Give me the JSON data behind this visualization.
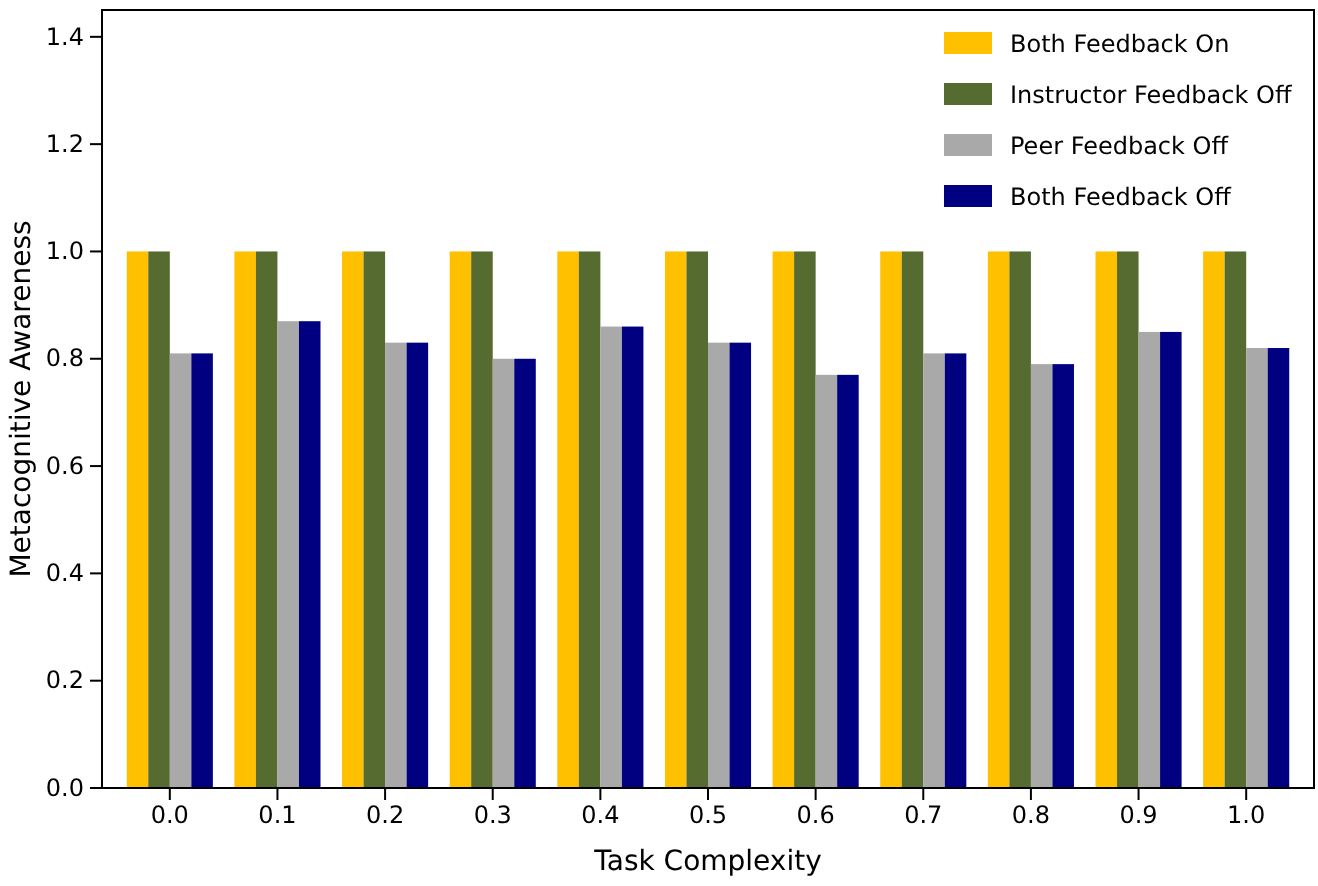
{
  "chart_data": {
    "type": "bar",
    "xlabel": "Task Complexity",
    "ylabel": "Metacognitive Awareness",
    "categories": [
      "0.0",
      "0.1",
      "0.2",
      "0.3",
      "0.4",
      "0.5",
      "0.6",
      "0.7",
      "0.8",
      "0.9",
      "1.0"
    ],
    "series": [
      {
        "name": "Both Feedback On",
        "color": "#ffc000",
        "values": [
          1,
          1,
          1,
          1,
          1,
          1,
          1,
          1,
          1,
          1,
          1
        ]
      },
      {
        "name": "Instructor Feedback Off",
        "color": "#556b2f",
        "values": [
          1,
          1,
          1,
          1,
          1,
          1,
          1,
          1,
          1,
          1,
          1
        ]
      },
      {
        "name": "Peer Feedback Off",
        "color": "#a9a9a9",
        "values": [
          0.81,
          0.87,
          0.83,
          0.8,
          0.86,
          0.83,
          0.77,
          0.81,
          0.79,
          0.85,
          0.82
        ]
      },
      {
        "name": "Both Feedback Off",
        "color": "#000080",
        "values": [
          0.81,
          0.87,
          0.83,
          0.8,
          0.86,
          0.83,
          0.77,
          0.81,
          0.79,
          0.85,
          0.82
        ]
      }
    ],
    "ylim": [
      0,
      1.45
    ],
    "yticks": [
      {
        "value": 0,
        "label": "0.0"
      },
      {
        "value": 0.2,
        "label": "0.2"
      },
      {
        "value": 0.4,
        "label": "0.4"
      },
      {
        "value": 0.6,
        "label": "0.6"
      },
      {
        "value": 0.8,
        "label": "0.8"
      },
      {
        "value": 1,
        "label": "1.0"
      },
      {
        "value": 1.2,
        "label": "1.2"
      },
      {
        "value": 1.4,
        "label": "1.4"
      }
    ],
    "grid": false,
    "legend": "top right"
  }
}
